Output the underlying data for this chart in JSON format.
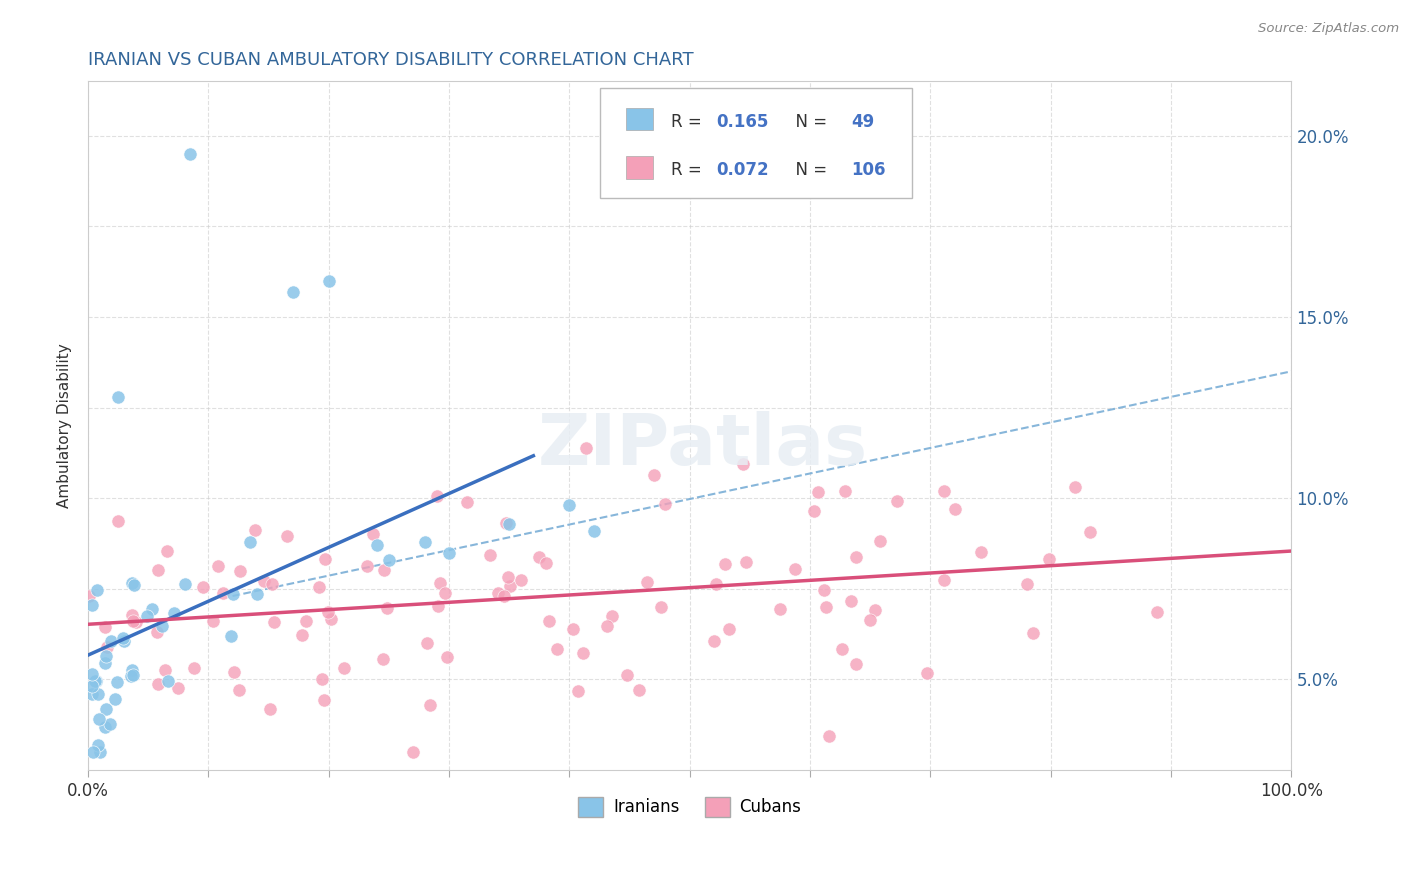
{
  "title": "IRANIAN VS CUBAN AMBULATORY DISABILITY CORRELATION CHART",
  "source": "Source: ZipAtlas.com",
  "ylabel": "Ambulatory Disability",
  "xlim": [
    0.0,
    1.0
  ],
  "ylim": [
    0.025,
    0.215
  ],
  "y_tick_positions": [
    0.05,
    0.075,
    0.1,
    0.125,
    0.15,
    0.175,
    0.2
  ],
  "y_tick_labels": [
    "5.0%",
    "",
    "10.0%",
    "",
    "15.0%",
    "",
    "20.0%"
  ],
  "x_tick_positions": [
    0.0,
    0.1,
    0.2,
    0.3,
    0.4,
    0.5,
    0.6,
    0.7,
    0.8,
    0.9,
    1.0
  ],
  "x_tick_labels": [
    "0.0%",
    "",
    "",
    "",
    "",
    "",
    "",
    "",
    "",
    "",
    "100.0%"
  ],
  "iranian_R": 0.165,
  "iranian_N": 49,
  "cuban_R": 0.072,
  "cuban_N": 106,
  "iranian_color": "#89C4E8",
  "cuban_color": "#F4A0B8",
  "iranian_line_color": "#3A6FBF",
  "cuban_line_color": "#D94F7A",
  "dash_line_color": "#7AAED6",
  "background_color": "#FFFFFF",
  "grid_color": "#CCCCCC",
  "title_color": "#336699",
  "axis_label_color": "#336699",
  "text_color": "#333333",
  "legend_value_color": "#4472C4"
}
